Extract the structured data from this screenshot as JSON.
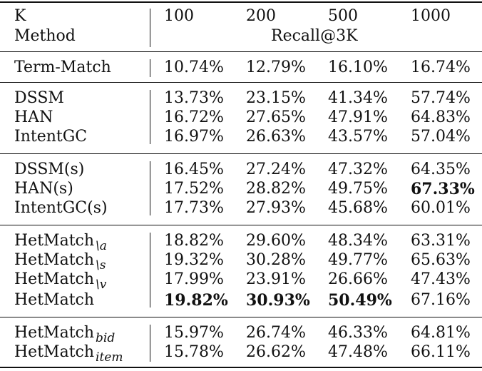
{
  "header": {
    "k_label": "K",
    "method_label": "Method",
    "k_values": [
      "100",
      "200",
      "500",
      "1000"
    ],
    "metric_label": "Recall@3K"
  },
  "groups": [
    {
      "rows": [
        {
          "method": "Term-Match",
          "suffix": "",
          "values": [
            "10.74%",
            "12.79%",
            "16.10%",
            "16.74%"
          ]
        }
      ]
    },
    {
      "rows": [
        {
          "method": "DSSM",
          "suffix": "",
          "values": [
            "13.73%",
            "23.15%",
            "41.34%",
            "57.74%"
          ]
        },
        {
          "method": "HAN",
          "suffix": "",
          "values": [
            "16.72%",
            "27.65%",
            "47.91%",
            "64.83%"
          ]
        },
        {
          "method": "IntentGC",
          "suffix": "",
          "values": [
            "16.97%",
            "26.63%",
            "43.57%",
            "57.04%"
          ]
        }
      ]
    },
    {
      "rows": [
        {
          "method": "DSSM(s)",
          "suffix": "",
          "values": [
            "16.45%",
            "27.24%",
            "47.32%",
            "64.35%"
          ]
        },
        {
          "method": "HAN(s)",
          "suffix": "",
          "values": [
            "17.52%",
            "28.82%",
            "49.75%",
            "67.33%"
          ]
        },
        {
          "method": "IntentGC(s)",
          "suffix": "",
          "values": [
            "17.73%",
            "27.93%",
            "45.68%",
            "60.01%"
          ]
        }
      ]
    },
    {
      "rows": [
        {
          "method": "HetMatch",
          "suffix": "\\a",
          "values": [
            "18.82%",
            "29.60%",
            "48.34%",
            "63.31%"
          ]
        },
        {
          "method": "HetMatch",
          "suffix": "\\s",
          "values": [
            "19.32%",
            "30.28%",
            "49.77%",
            "65.63%"
          ]
        },
        {
          "method": "HetMatch",
          "suffix": "\\v",
          "values": [
            "17.99%",
            "23.91%",
            "26.66%",
            "47.43%"
          ]
        },
        {
          "method": "HetMatch",
          "suffix": "",
          "values": [
            "19.82%",
            "30.93%",
            "50.49%",
            "67.16%"
          ]
        }
      ]
    },
    {
      "rows": [
        {
          "method": "HetMatch",
          "suffix": "bid",
          "values": [
            "15.97%",
            "26.74%",
            "46.33%",
            "64.81%"
          ]
        },
        {
          "method": "HetMatch",
          "suffix": "item",
          "values": [
            "15.78%",
            "26.62%",
            "47.48%",
            "66.11%"
          ]
        }
      ]
    }
  ],
  "bold_cells": [
    {
      "group": 2,
      "row": 1,
      "col": 3
    },
    {
      "group": 3,
      "row": 3,
      "col": 0
    },
    {
      "group": 3,
      "row": 3,
      "col": 1
    },
    {
      "group": 3,
      "row": 3,
      "col": 2
    }
  ]
}
